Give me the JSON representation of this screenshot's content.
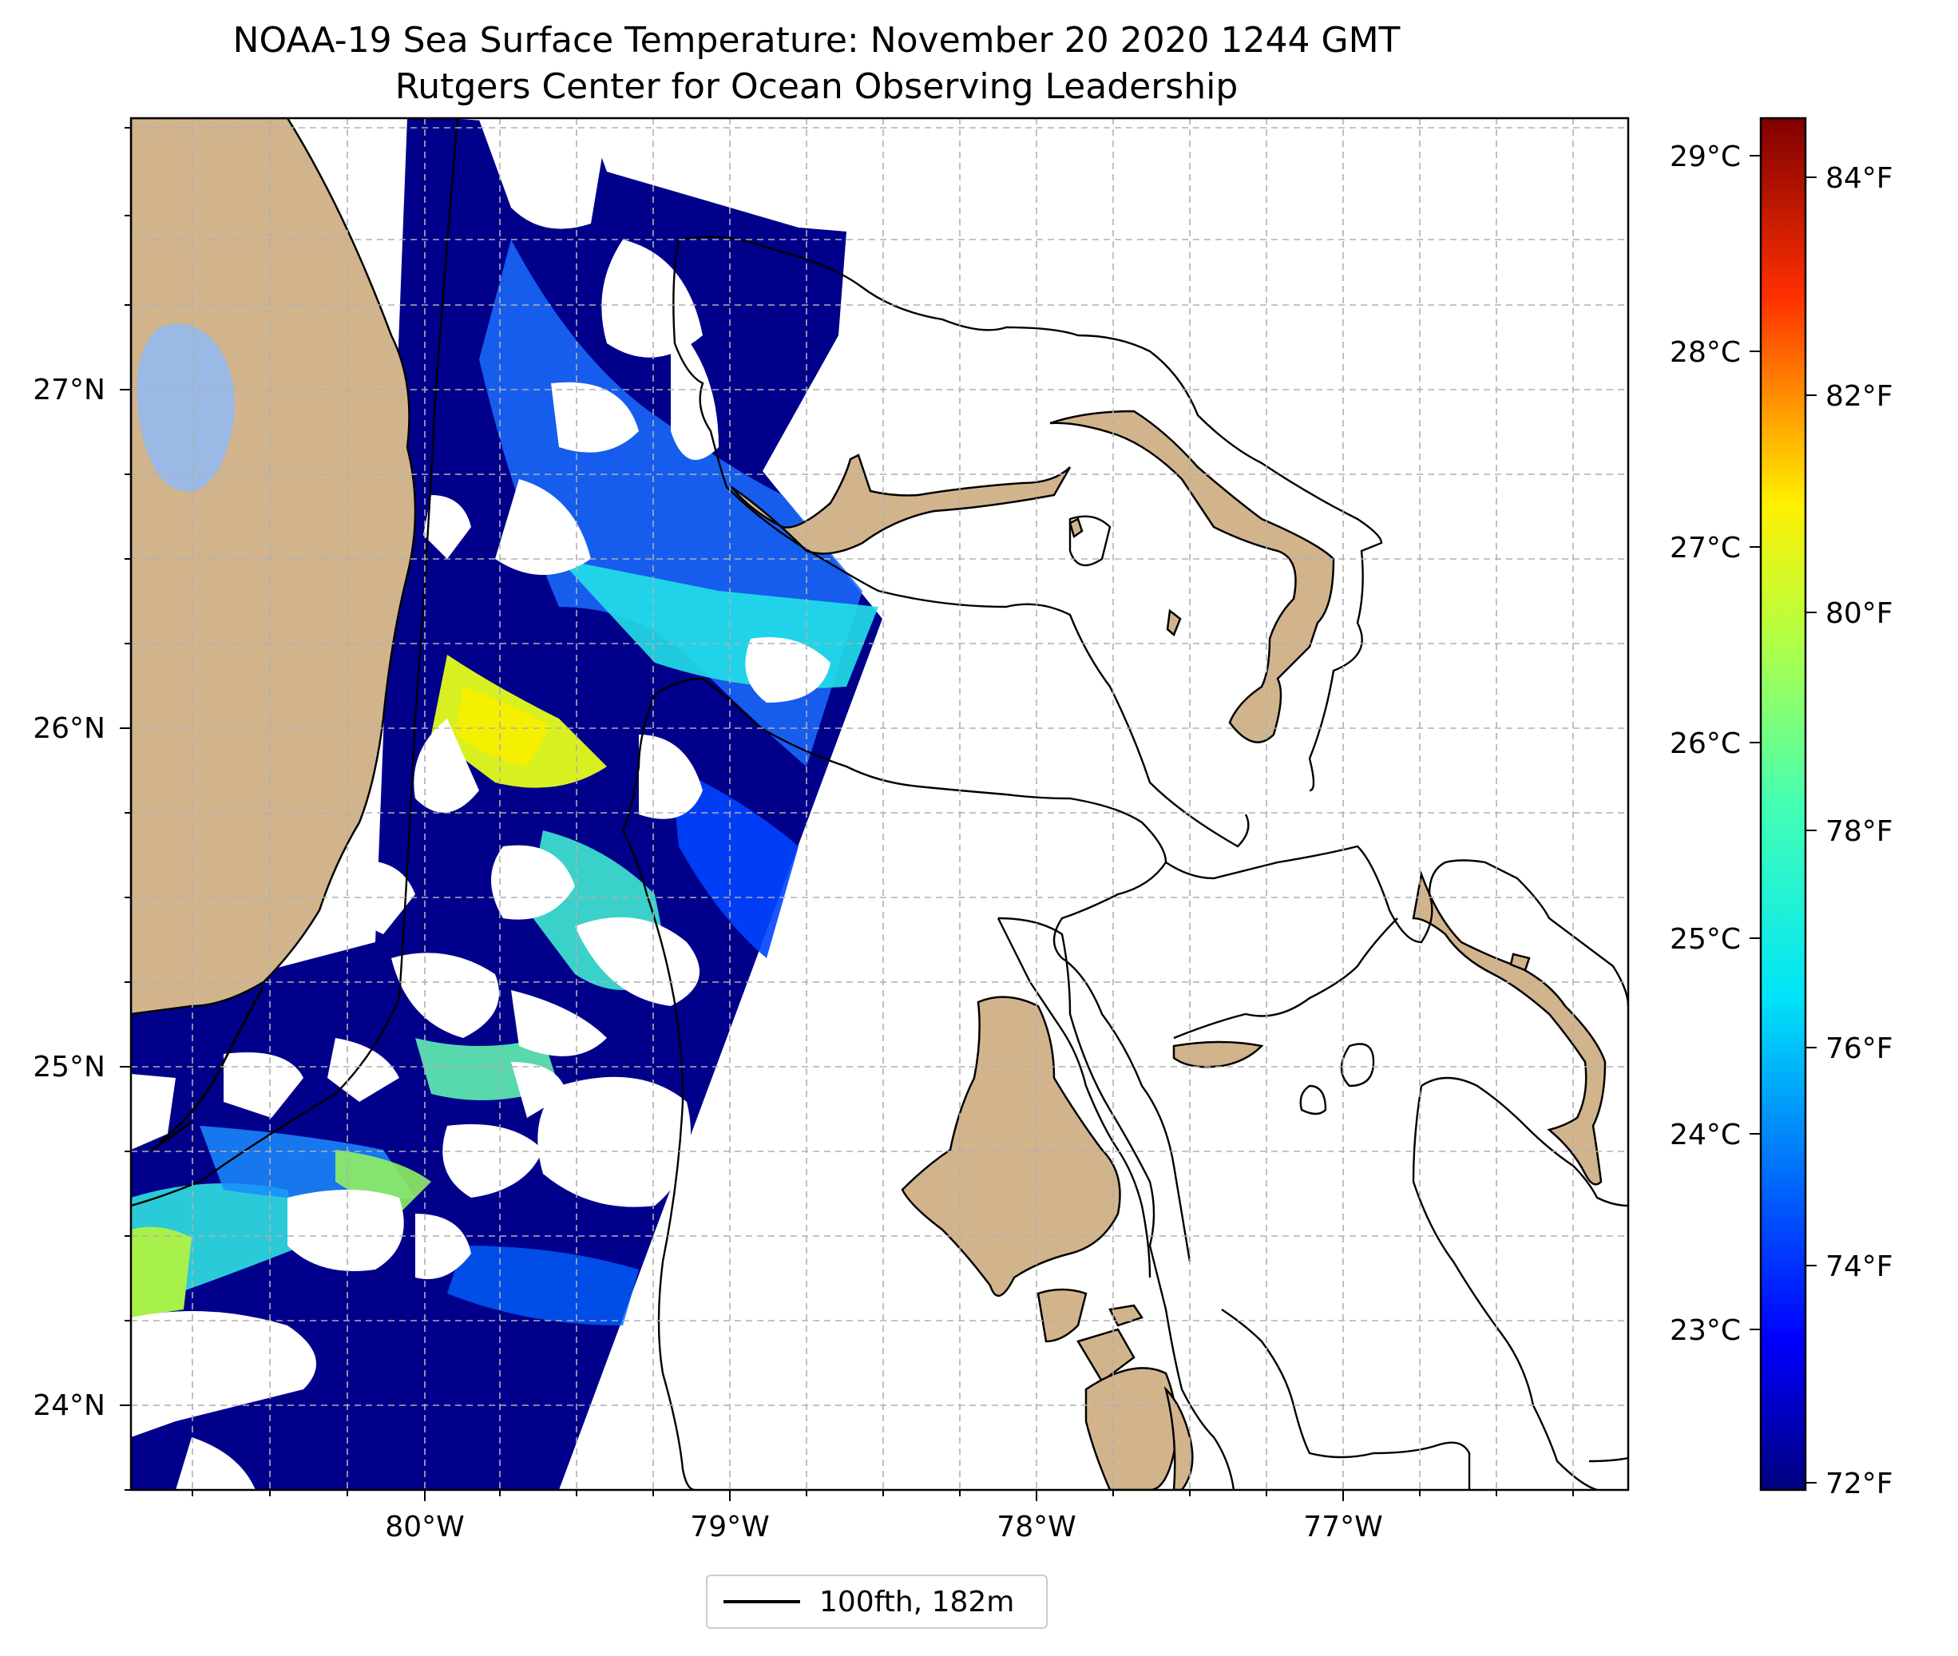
{
  "figure": {
    "title_line1": "NOAA-19 Sea Surface Temperature: November 20 2020 1244 GMT",
    "title_line2": "Rutgers Center for Ocean Observing Leadership"
  },
  "map": {
    "lat_labels": [
      "27°N",
      "26°N",
      "25°N",
      "24°N"
    ],
    "lon_labels": [
      "80°W",
      "79°W",
      "78°W",
      "77°W"
    ],
    "colors": {
      "land": "#d2b48c",
      "lake": "#9ab9e4",
      "contour": "#000000",
      "grid": "#b0b0b0"
    }
  },
  "colorbar": {
    "celsius_labels": [
      "29°C",
      "28°C",
      "27°C",
      "26°C",
      "25°C",
      "24°C",
      "23°C"
    ],
    "fahrenheit_labels": [
      "84°F",
      "82°F",
      "80°F",
      "78°F",
      "76°F",
      "74°F",
      "72°F"
    ],
    "colormap": "jet"
  },
  "legend": {
    "label": "100fth, 182m"
  }
}
